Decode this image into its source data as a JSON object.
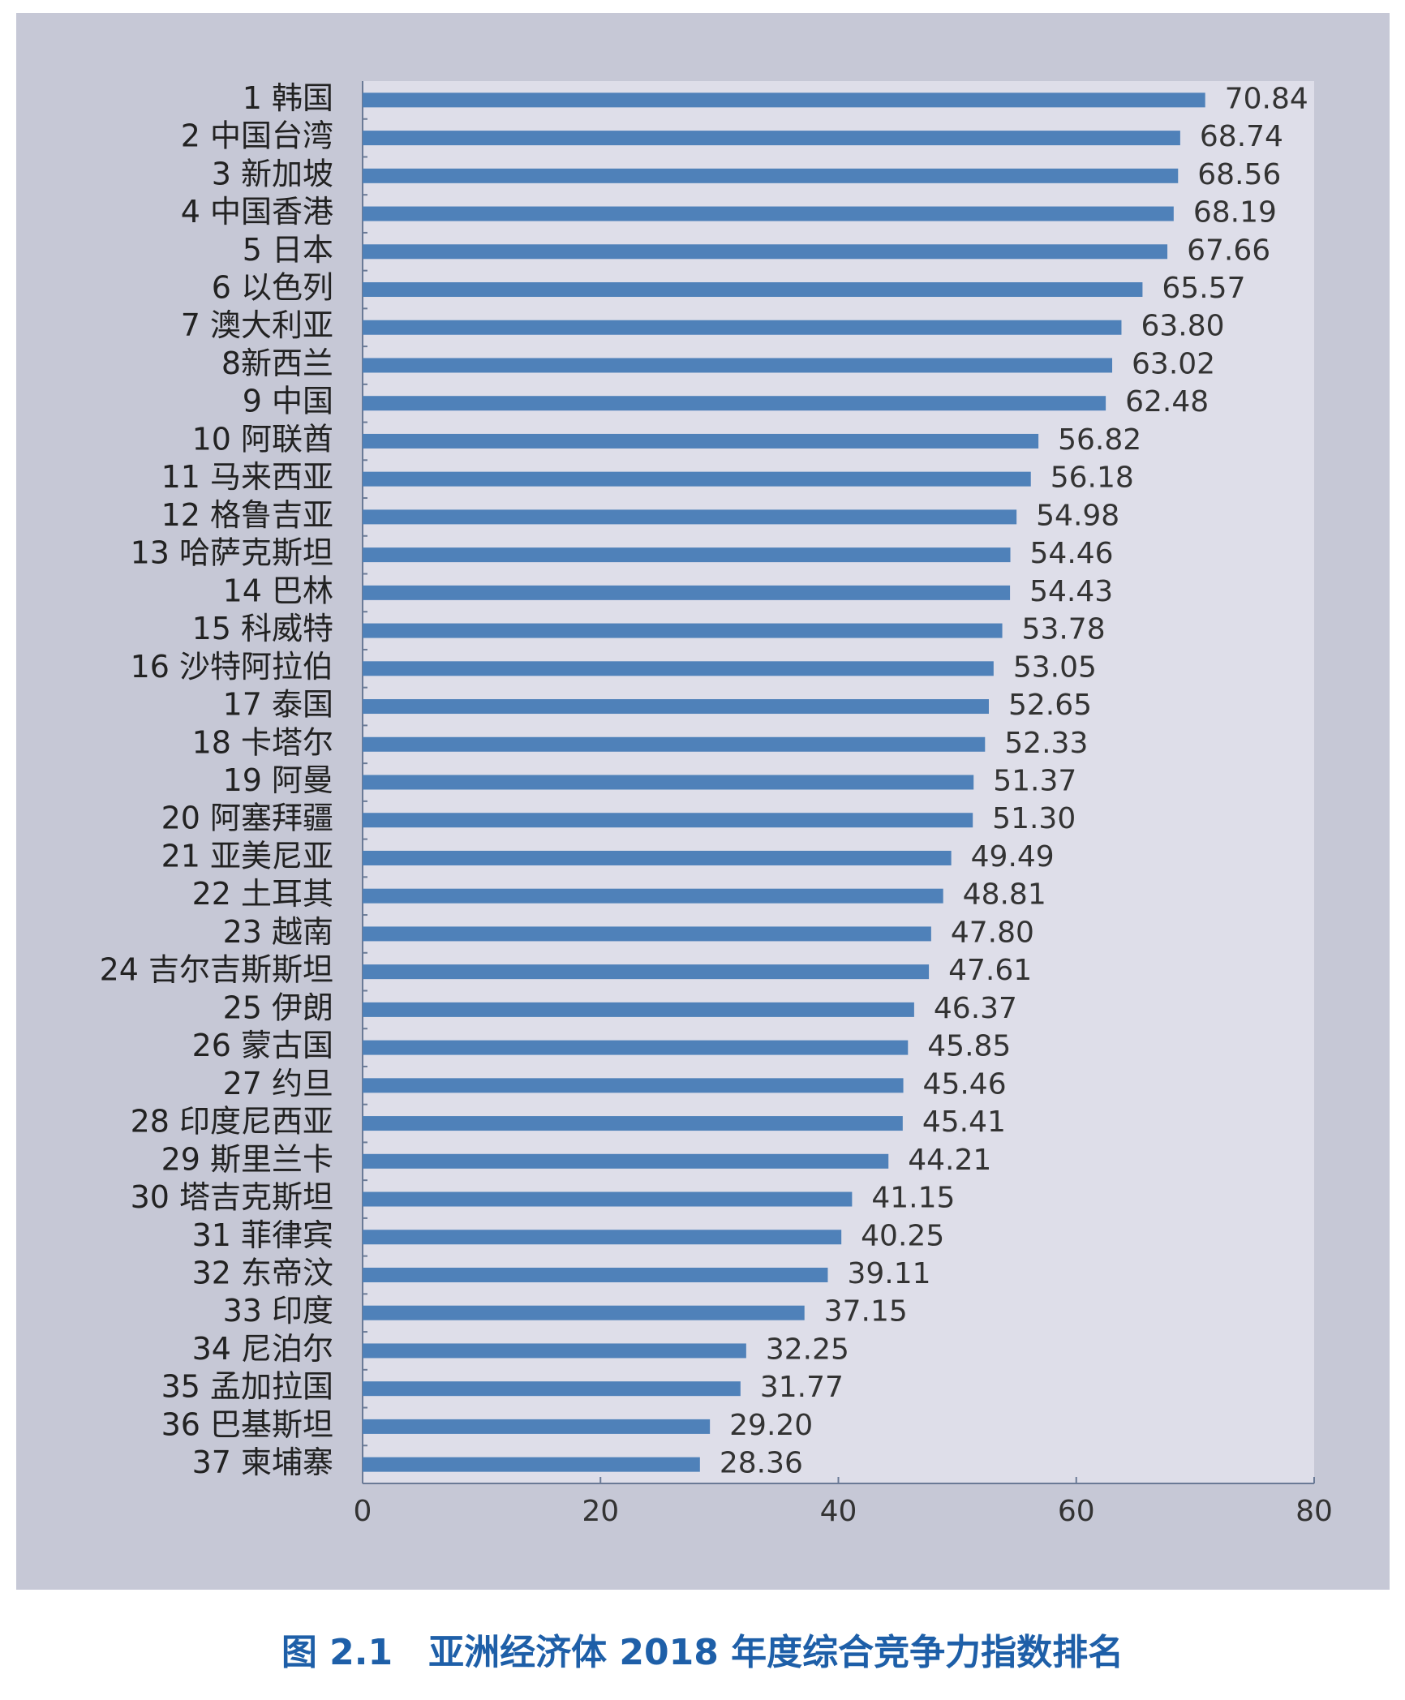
{
  "chart_data": {
    "type": "bar",
    "orientation": "horizontal",
    "caption": "图 2.1　亚洲经济体 2018 年度综合竞争力指数排名",
    "categories": [
      "1 韩国",
      "2 中国台湾",
      "3 新加坡",
      "4 中国香港",
      "5 日本",
      "6 以色列",
      "7 澳大利亚",
      "8新西兰",
      "9 中国",
      "10 阿联酋",
      "11 马来西亚",
      "12 格鲁吉亚",
      "13 哈萨克斯坦",
      "14 巴林",
      "15 科威特",
      "16 沙特阿拉伯",
      "17 泰国",
      "18 卡塔尔",
      "19 阿曼",
      "20 阿塞拜疆",
      "21 亚美尼亚",
      "22 土耳其",
      "23 越南",
      "24 吉尔吉斯斯坦",
      "25 伊朗",
      "26 蒙古国",
      "27 约旦",
      "28 印度尼西亚",
      "29 斯里兰卡",
      "30 塔吉克斯坦",
      "31 菲律宾",
      "32 东帝汶",
      "33 印度",
      "34 尼泊尔",
      "35 孟加拉国",
      "36 巴基斯坦",
      "37 柬埔寨"
    ],
    "values": [
      70.84,
      68.74,
      68.56,
      68.19,
      67.66,
      65.57,
      63.8,
      63.02,
      62.48,
      56.82,
      56.18,
      54.98,
      54.46,
      54.43,
      53.78,
      53.05,
      52.65,
      52.33,
      51.37,
      51.3,
      49.49,
      48.81,
      47.8,
      47.61,
      46.37,
      45.85,
      45.46,
      45.41,
      44.21,
      41.15,
      40.25,
      39.11,
      37.15,
      32.25,
      31.77,
      29.2,
      28.36
    ],
    "value_labels": [
      "70.84",
      "68.74",
      "68.56",
      "68.19",
      "67.66",
      "65.57",
      "63.80",
      "63.02",
      "62.48",
      "56.82",
      "56.18",
      "54.98",
      "54.46",
      "54.43",
      "53.78",
      "53.05",
      "52.65",
      "52.33",
      "51.37",
      "51.30",
      "49.49",
      "48.81",
      "47.80",
      "47.61",
      "46.37",
      "45.85",
      "45.46",
      "45.41",
      "44.21",
      "41.15",
      "40.25",
      "39.11",
      "37.15",
      "32.25",
      "31.77",
      "29.20",
      "28.36"
    ],
    "color": "#4f81b9",
    "xlim": [
      0,
      80
    ],
    "xticks": [
      0,
      20,
      40,
      60,
      80
    ]
  }
}
